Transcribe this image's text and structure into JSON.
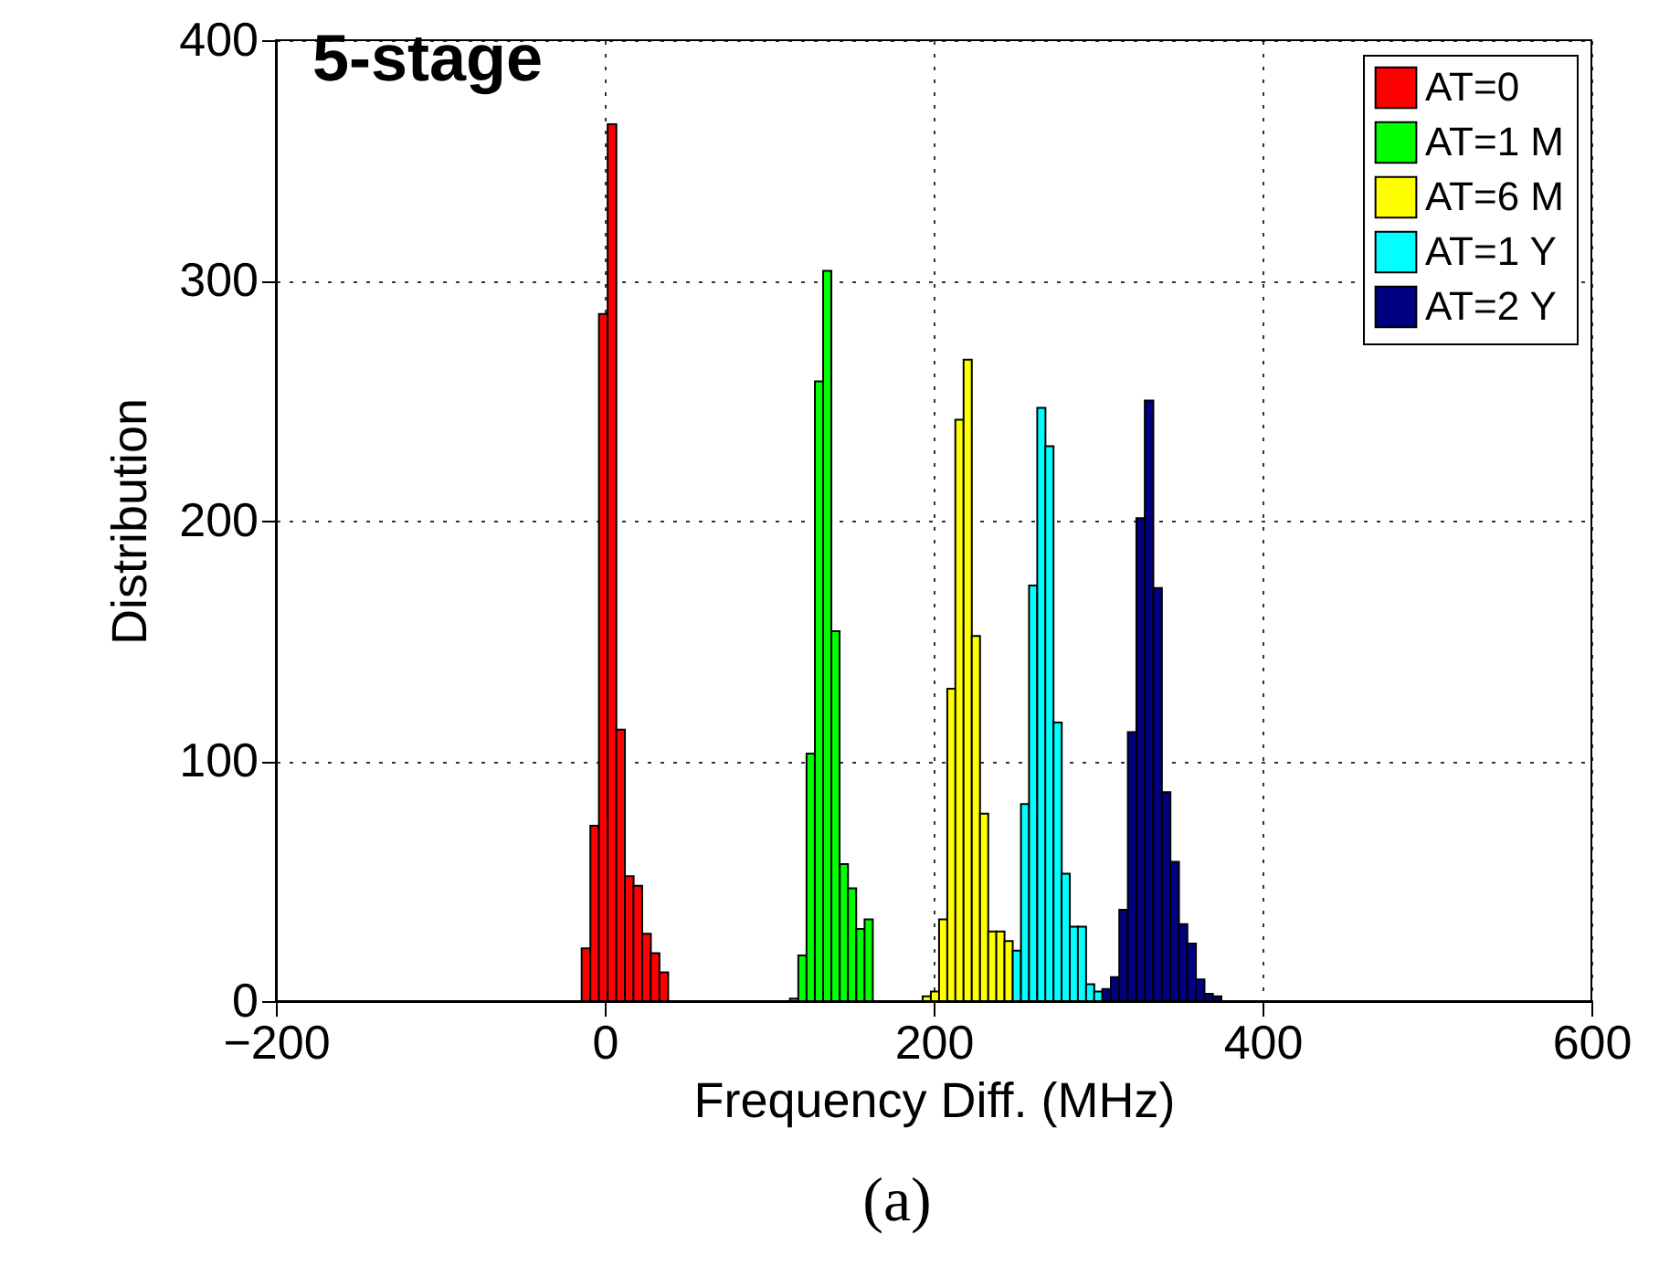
{
  "chart_data": {
    "type": "bar",
    "title": "5-stage",
    "xlabel": "Frequency Diff. (MHz)",
    "ylabel": "Distribution",
    "annotations": [
      "(a)"
    ],
    "xlim": [
      -200,
      600
    ],
    "xticks": [
      -200,
      0,
      200,
      400,
      600
    ],
    "ylim": [
      0,
      400
    ],
    "yticks": [
      0,
      100,
      200,
      300,
      400
    ],
    "grid": true,
    "legend": "top right",
    "series": [
      {
        "name": "AT=0",
        "color": "#ff0000",
        "x": [
          -11.4,
          -6.1,
          -0.9,
          4.4,
          9.6,
          14.9,
          20.1,
          25.4,
          30.6,
          35.9
        ],
        "values": [
          22,
          73,
          286,
          365,
          113,
          52,
          48,
          28,
          20,
          12
        ]
      },
      {
        "name": "AT=1 M",
        "color": "#00ff00",
        "x": [
          115.1,
          120.2,
          125.2,
          130.3,
          135.3,
          140.3,
          145.4,
          150.4,
          155.5,
          160.5
        ],
        "values": [
          1,
          19,
          103,
          258,
          304,
          154,
          57,
          47,
          30,
          34
        ]
      },
      {
        "name": "AT=6 M",
        "color": "#ffff00",
        "x": [
          195.8,
          200.8,
          205.8,
          210.8,
          215.7,
          220.7,
          225.7,
          230.7,
          235.7,
          240.6,
          245.6
        ],
        "values": [
          2,
          4,
          34,
          130,
          242,
          267,
          152,
          78,
          29,
          29,
          25
        ]
      },
      {
        "name": "AT=1 Y",
        "color": "#00ffff",
        "x": [
          250.6,
          255.6,
          260.5,
          265.5,
          270.4,
          275.4,
          280.3,
          285.3,
          290.2,
          295.2,
          300.1
        ],
        "values": [
          21,
          82,
          173,
          247,
          231,
          116,
          53,
          31,
          31,
          7,
          4
        ]
      },
      {
        "name": "AT=2 Y",
        "color": "#000080",
        "x": [
          305.2,
          310.4,
          315.5,
          320.7,
          325.9,
          331,
          336.2,
          341.4,
          346.6,
          351.7,
          356.9,
          362.1,
          367.2,
          372.4
        ],
        "values": [
          5,
          10,
          38,
          112,
          201,
          250,
          172,
          87,
          58,
          32,
          24,
          9,
          3,
          2
        ]
      }
    ]
  }
}
